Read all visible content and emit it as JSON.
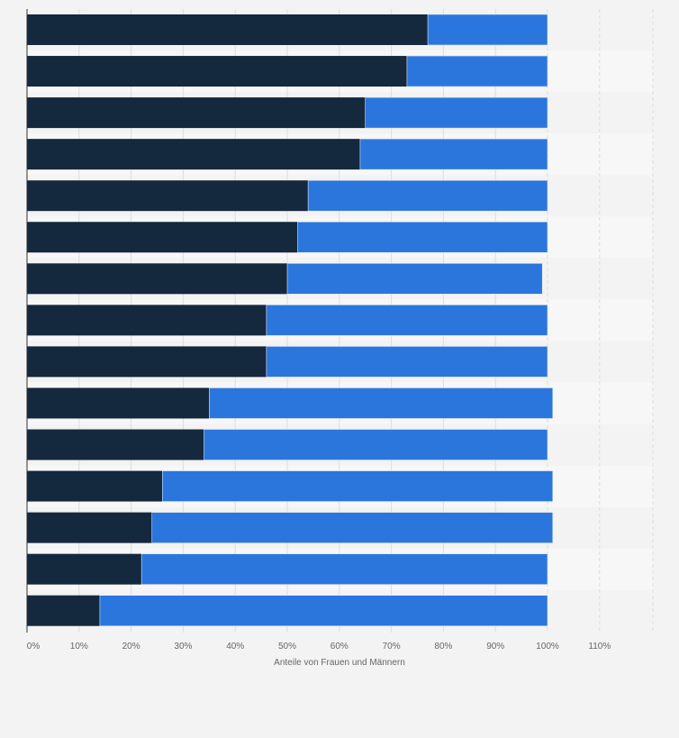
{
  "chart_data": {
    "type": "bar",
    "orientation": "horizontal",
    "stacked": true,
    "xlabel": "Anteile von Frauen und Männern",
    "ylabel": "",
    "xlim": [
      0,
      120
    ],
    "x_ticks": [
      "0%",
      "10%",
      "20%",
      "30%",
      "40%",
      "50%",
      "60%",
      "70%",
      "80%",
      "90%",
      "100%",
      "110%"
    ],
    "x_tick_values": [
      0,
      10,
      20,
      30,
      40,
      50,
      60,
      70,
      80,
      90,
      100,
      110
    ],
    "grid": true,
    "legend": "none",
    "categories": [
      "",
      "",
      "",
      "",
      "",
      "",
      "",
      "",
      "",
      "",
      "",
      "",
      "",
      "",
      ""
    ],
    "series": [
      {
        "color": "#14283e",
        "values": [
          77,
          73,
          65,
          64,
          54,
          52,
          50,
          46,
          46,
          35,
          34,
          26,
          24,
          22,
          14
        ]
      },
      {
        "color": "#2a76dd",
        "values": [
          23,
          27,
          35,
          36,
          46,
          48,
          49,
          54,
          54,
          66,
          66,
          75,
          77,
          78,
          86
        ]
      }
    ],
    "colors": {
      "background": "#f3f3f3",
      "band_light": "#f7f7f7",
      "gridline": "#dddddd",
      "axis": "#333333"
    }
  }
}
